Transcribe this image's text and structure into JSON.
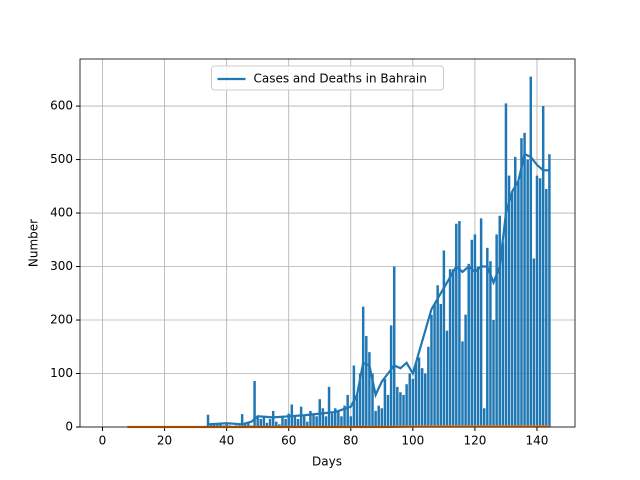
{
  "chart_data": {
    "type": "bar",
    "xlabel": "Days",
    "ylabel": "Number",
    "x": [
      34,
      35,
      36,
      37,
      38,
      39,
      40,
      41,
      42,
      43,
      44,
      45,
      46,
      47,
      48,
      49,
      50,
      51,
      52,
      53,
      54,
      55,
      56,
      57,
      58,
      59,
      60,
      61,
      62,
      63,
      64,
      65,
      66,
      67,
      68,
      69,
      70,
      71,
      72,
      73,
      74,
      75,
      76,
      77,
      78,
      79,
      80,
      81,
      82,
      83,
      84,
      85,
      86,
      87,
      88,
      89,
      90,
      91,
      92,
      93,
      94,
      95,
      96,
      97,
      98,
      99,
      100,
      101,
      102,
      103,
      104,
      105,
      106,
      107,
      108,
      109,
      110,
      111,
      112,
      113,
      114,
      115,
      116,
      117,
      118,
      119,
      120,
      121,
      122,
      123,
      124,
      125,
      126,
      127,
      128,
      129,
      130,
      131,
      132,
      133,
      134,
      135,
      136,
      137,
      138,
      139,
      140,
      141,
      142,
      143,
      144
    ],
    "values": [
      23,
      5,
      5,
      5,
      5,
      3,
      7,
      3,
      2,
      3,
      3,
      24,
      5,
      8,
      3,
      86,
      20,
      15,
      18,
      8,
      15,
      30,
      10,
      5,
      20,
      15,
      25,
      42,
      20,
      15,
      38,
      20,
      10,
      30,
      25,
      20,
      52,
      35,
      20,
      75,
      25,
      35,
      30,
      20,
      40,
      60,
      20,
      115,
      60,
      100,
      225,
      170,
      140,
      100,
      30,
      40,
      35,
      90,
      60,
      190,
      300,
      75,
      65,
      60,
      80,
      100,
      90,
      120,
      130,
      110,
      100,
      150,
      210,
      230,
      265,
      230,
      330,
      180,
      295,
      295,
      380,
      385,
      160,
      210,
      305,
      350,
      360,
      300,
      390,
      35,
      335,
      310,
      200,
      360,
      395,
      345,
      605,
      470,
      440,
      505,
      460,
      540,
      550,
      500,
      655,
      315,
      470,
      465,
      600,
      445,
      510
    ],
    "color": "#1f77b4",
    "series": [
      {
        "name": "Cases and Deaths in Bahrain",
        "color": "#1f77b4",
        "x": [
          34,
          40,
          45,
          48,
          50,
          55,
          60,
          65,
          70,
          75,
          80,
          82,
          84,
          86,
          88,
          90,
          92,
          94,
          96,
          98,
          100,
          102,
          104,
          106,
          108,
          110,
          112,
          114,
          116,
          118,
          120,
          122,
          124,
          126,
          128,
          130,
          132,
          134,
          136,
          138,
          140,
          142,
          144
        ],
        "values": [
          5,
          7,
          5,
          10,
          20,
          18,
          20,
          22,
          25,
          28,
          38,
          60,
          120,
          115,
          60,
          85,
          100,
          115,
          110,
          120,
          100,
          140,
          180,
          220,
          240,
          260,
          280,
          300,
          290,
          300,
          290,
          300,
          300,
          270,
          300,
          400,
          440,
          460,
          510,
          505,
          490,
          480,
          480
        ]
      },
      {
        "color": "#ff7f0e",
        "x": [
          8,
          20,
          40,
          60,
          80,
          90,
          100,
          110,
          120,
          130,
          140,
          144
        ],
        "values": [
          0,
          0,
          0,
          0,
          0,
          0,
          1,
          1,
          1,
          1,
          1,
          1
        ]
      }
    ],
    "xlim": [
      -7.25,
      152.25
    ],
    "ylim": [
      0,
      688
    ],
    "xticks": [
      0,
      20,
      40,
      60,
      80,
      100,
      120,
      140
    ],
    "yticks": [
      0,
      100,
      200,
      300,
      400,
      500,
      600
    ],
    "grid": true,
    "legend": "upper center"
  }
}
